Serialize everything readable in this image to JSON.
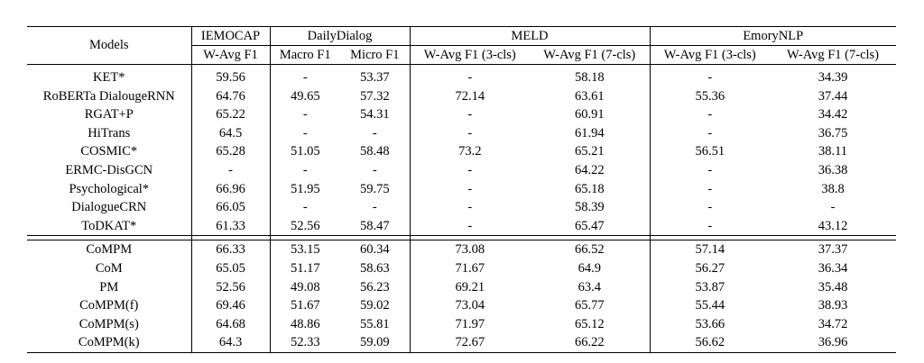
{
  "table": {
    "models_header": "Models",
    "datasets": [
      {
        "name": "IEMOCAP",
        "metrics": [
          "W-Avg F1"
        ]
      },
      {
        "name": "DailyDialog",
        "metrics": [
          "Macro F1",
          "Micro F1"
        ]
      },
      {
        "name": "MELD",
        "metrics": [
          "W-Avg F1 (3-cls)",
          "W-Avg F1 (7-cls)"
        ]
      },
      {
        "name": "EmoryNLP",
        "metrics": [
          "W-Avg F1 (3-cls)",
          "W-Avg F1 (7-cls)"
        ]
      }
    ],
    "baseline_rows": [
      {
        "model": "KET*",
        "values": [
          "59.56",
          "-",
          "53.37",
          "-",
          "58.18",
          "-",
          "34.39"
        ],
        "bold": []
      },
      {
        "model": "RoBERTa DialougeRNN",
        "values": [
          "64.76",
          "49.65",
          "57.32",
          "72.14",
          "63.61",
          "55.36",
          "37.44"
        ],
        "bold": []
      },
      {
        "model": "RGAT+P",
        "values": [
          "65.22",
          "-",
          "54.31",
          "-",
          "60.91",
          "-",
          "34.42"
        ],
        "bold": []
      },
      {
        "model": "HiTrans",
        "values": [
          "64.5",
          "-",
          "-",
          "-",
          "61.94",
          "-",
          "36.75"
        ],
        "bold": []
      },
      {
        "model": "COSMIC*",
        "values": [
          "65.28",
          "51.05",
          "58.48",
          "73.2",
          "65.21",
          "56.51",
          "38.11"
        ],
        "bold": [
          3,
          5
        ]
      },
      {
        "model": "ERMC-DisGCN",
        "values": [
          "-",
          "-",
          "-",
          "-",
          "64.22",
          "-",
          "36.38"
        ],
        "bold": []
      },
      {
        "model": "Psychological*",
        "values": [
          "66.96",
          "51.95",
          "59.75",
          "-",
          "65.18",
          "-",
          "38.8"
        ],
        "bold": [
          0,
          2
        ]
      },
      {
        "model": "DialogueCRN",
        "values": [
          "66.05",
          "-",
          "-",
          "-",
          "58.39",
          "-",
          "-"
        ],
        "bold": []
      },
      {
        "model": "ToDKAT*",
        "values": [
          "61.33",
          "52.56",
          "58.47",
          "-",
          "65.47",
          "-",
          "43.12"
        ],
        "bold": [
          1,
          4,
          6
        ]
      }
    ],
    "ours_rows": [
      {
        "model": "CoMPM",
        "values": [
          "66.33",
          "53.15",
          "60.34",
          "73.08",
          "66.52",
          "57.14",
          "37.37"
        ],
        "bold": [
          1,
          2,
          3,
          4,
          5
        ]
      },
      {
        "model": "CoM",
        "values": [
          "65.05",
          "51.17",
          "58.63",
          "71.67",
          "64.9",
          "56.27",
          "36.34"
        ],
        "bold": []
      },
      {
        "model": "PM",
        "values": [
          "52.56",
          "49.08",
          "56.23",
          "69.21",
          "63.4",
          "53.87",
          "35.48"
        ],
        "bold": []
      },
      {
        "model": "CoMPM(f)",
        "values": [
          "69.46",
          "51.67",
          "59.02",
          "73.04",
          "65.77",
          "55.44",
          "38.93"
        ],
        "bold": [
          0,
          6
        ]
      },
      {
        "model": "CoMPM(s)",
        "values": [
          "64.68",
          "48.86",
          "55.81",
          "71.97",
          "65.12",
          "53.66",
          "34.72"
        ],
        "bold": []
      },
      {
        "model": "CoMPM(k)",
        "values": [
          "64.3",
          "52.33",
          "59.09",
          "72.67",
          "66.22",
          "56.62",
          "36.96"
        ],
        "bold": []
      }
    ]
  }
}
